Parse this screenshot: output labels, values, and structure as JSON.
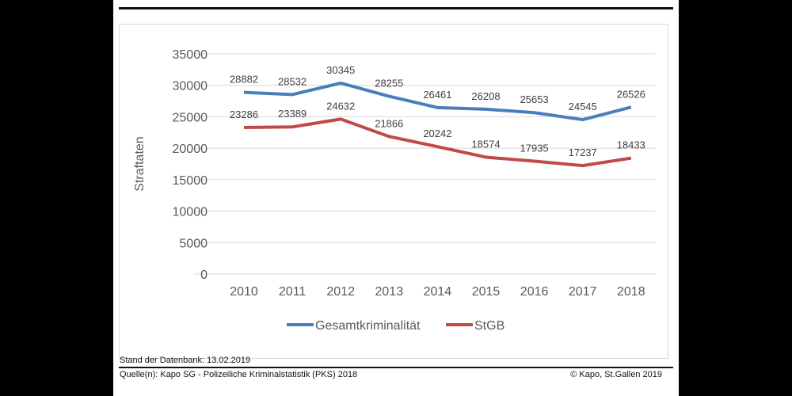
{
  "chart_data": {
    "type": "line",
    "categories": [
      "2010",
      "2011",
      "2012",
      "2013",
      "2014",
      "2015",
      "2016",
      "2017",
      "2018"
    ],
    "series": [
      {
        "name": "Gesamtkriminalität",
        "color": "#4a7ebb",
        "values": [
          28882,
          28532,
          30345,
          28255,
          26461,
          26208,
          25653,
          24545,
          26526
        ]
      },
      {
        "name": "StGB",
        "color": "#be4b48",
        "values": [
          23286,
          23389,
          24632,
          21866,
          20242,
          18574,
          17935,
          17237,
          18433
        ]
      }
    ],
    "ylabel": "Straftaten",
    "xlabel": "",
    "ylim": [
      0,
      35000
    ],
    "yticks": [
      "0",
      "5000",
      "10000",
      "15000",
      "20000",
      "25000",
      "30000",
      "35000"
    ],
    "grid": true,
    "legend": "bottom"
  },
  "footer": {
    "stand": "Stand der Datenbank: 13.02.2019",
    "quelle": "Quelle(n): Kapo SG - Polizeiliche Kriminalstatistik (PKS) 2018",
    "copyright": "© Kapo, St.Gallen 2019"
  }
}
